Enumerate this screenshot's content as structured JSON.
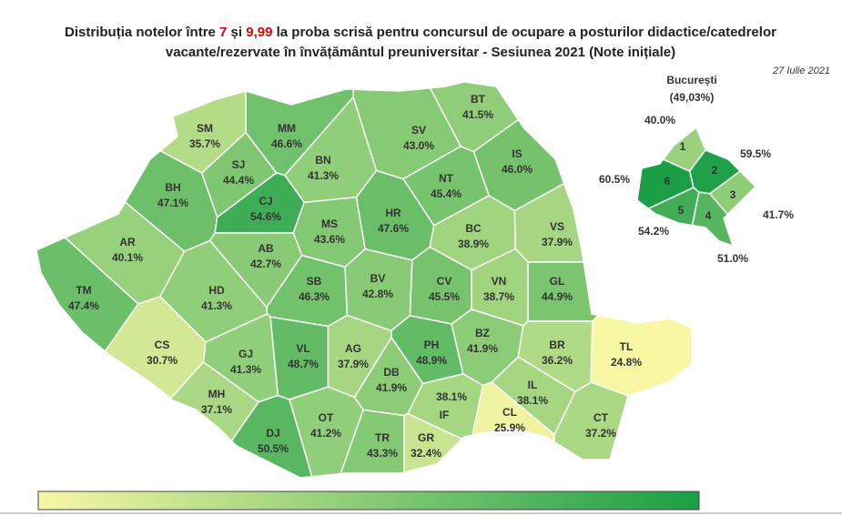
{
  "title_line1": [
    "Distribuția notelor între ",
    "7",
    " și ",
    "9,99",
    " la proba scrisă pentru concursul de ocupare a posturilor didactice/catedrelor"
  ],
  "title_line2": "vacante/rezervate în învățământul preuniversitar - Sesiunea 2021 (Note inițiale)",
  "highlight_color": "#e00000",
  "date": "27 Iulie 2021",
  "legend": {
    "color_low": "#f7f7a4",
    "color_high": "#1a9e46"
  },
  "counties": [
    {
      "code": "BT",
      "value": 41.5,
      "label": "41.5%"
    },
    {
      "code": "SV",
      "value": 43.0,
      "label": "43.0%"
    },
    {
      "code": "MM",
      "value": 46.6,
      "label": "46.6%"
    },
    {
      "code": "SM",
      "value": 35.7,
      "label": "35.7%"
    },
    {
      "code": "SJ",
      "value": 44.4,
      "label": "44.4%"
    },
    {
      "code": "BN",
      "value": 41.3,
      "label": "41.3%"
    },
    {
      "code": "IS",
      "value": 46.0,
      "label": "46.0%"
    },
    {
      "code": "NT",
      "value": 45.4,
      "label": "45.4%"
    },
    {
      "code": "BH",
      "value": 47.1,
      "label": "47.1%"
    },
    {
      "code": "CJ",
      "value": 54.6,
      "label": "54.6%"
    },
    {
      "code": "MS",
      "value": 43.6,
      "label": "43.6%"
    },
    {
      "code": "HR",
      "value": 47.6,
      "label": "47.6%"
    },
    {
      "code": "BC",
      "value": 38.9,
      "label": "38.9%"
    },
    {
      "code": "VS",
      "value": 37.9,
      "label": "37.9%"
    },
    {
      "code": "AR",
      "value": 40.1,
      "label": "40.1%"
    },
    {
      "code": "AB",
      "value": 42.7,
      "label": "42.7%"
    },
    {
      "code": "CV",
      "value": 45.5,
      "label": "45.5%"
    },
    {
      "code": "BV",
      "value": 42.8,
      "label": "42.8%"
    },
    {
      "code": "SB",
      "value": 46.3,
      "label": "46.3%"
    },
    {
      "code": "HD",
      "value": 41.3,
      "label": "41.3%"
    },
    {
      "code": "GL",
      "value": 44.9,
      "label": "44.9%"
    },
    {
      "code": "VN",
      "value": 38.7,
      "label": "38.7%"
    },
    {
      "code": "TM",
      "value": 47.4,
      "label": "47.4%"
    },
    {
      "code": "CS",
      "value": 30.7,
      "label": "30.7%"
    },
    {
      "code": "VL",
      "value": 48.7,
      "label": "48.7%"
    },
    {
      "code": "AG",
      "value": 37.9,
      "label": "37.9%"
    },
    {
      "code": "PH",
      "value": 48.9,
      "label": "48.9%"
    },
    {
      "code": "BZ",
      "value": 41.9,
      "label": "41.9%"
    },
    {
      "code": "BR",
      "value": 36.2,
      "label": "36.2%"
    },
    {
      "code": "TL",
      "value": 24.8,
      "label": "24.8%"
    },
    {
      "code": "GJ",
      "value": 41.3,
      "label": "41.3%"
    },
    {
      "code": "MH",
      "value": 37.1,
      "label": "37.1%"
    },
    {
      "code": "DB",
      "value": 41.9,
      "label": "41.9%"
    },
    {
      "code": "IL",
      "value": 38.1,
      "label": "38.1%"
    },
    {
      "code": "DJ",
      "value": 50.5,
      "label": "50.5%"
    },
    {
      "code": "OT",
      "value": 41.2,
      "label": "41.2%"
    },
    {
      "code": "TR",
      "value": 43.3,
      "label": "43.3%"
    },
    {
      "code": "GR",
      "value": 32.4,
      "label": "32.4%"
    },
    {
      "code": "IF",
      "value": 38.1,
      "label": "38.1%"
    },
    {
      "code": "CL",
      "value": 25.9,
      "label": "25.9%"
    },
    {
      "code": "CT",
      "value": 37.2,
      "label": "37.2%"
    }
  ],
  "bucharest": {
    "title": "București",
    "subtitle": "(49,03%)",
    "sectors": [
      {
        "code": "1",
        "value": 40.0,
        "label": "40.0%"
      },
      {
        "code": "2",
        "value": 59.5,
        "label": "59.5%"
      },
      {
        "code": "3",
        "value": 41.7,
        "label": "41.7%"
      },
      {
        "code": "4",
        "value": 51.0,
        "label": "51.0%"
      },
      {
        "code": "5",
        "value": 54.2,
        "label": "54.2%"
      },
      {
        "code": "6",
        "value": 60.5,
        "label": "60.5%"
      }
    ]
  }
}
